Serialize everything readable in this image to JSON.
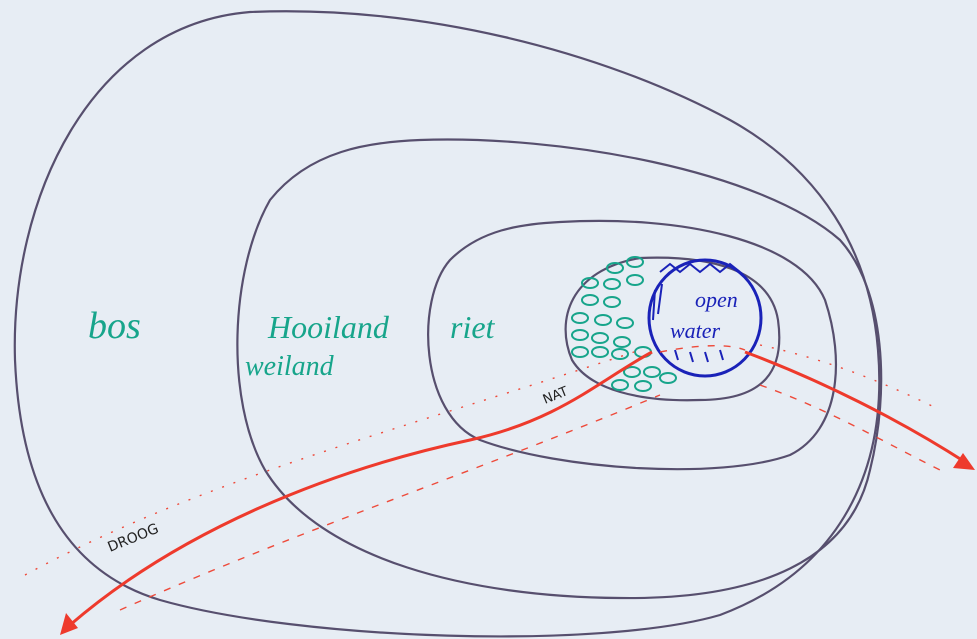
{
  "labels": {
    "bos": "bos",
    "hooiland": "Hooiland",
    "weiland": "weiland",
    "riet": "riet",
    "open": "open",
    "water": "water",
    "nat": "NAT",
    "droog": "DROOG"
  }
}
